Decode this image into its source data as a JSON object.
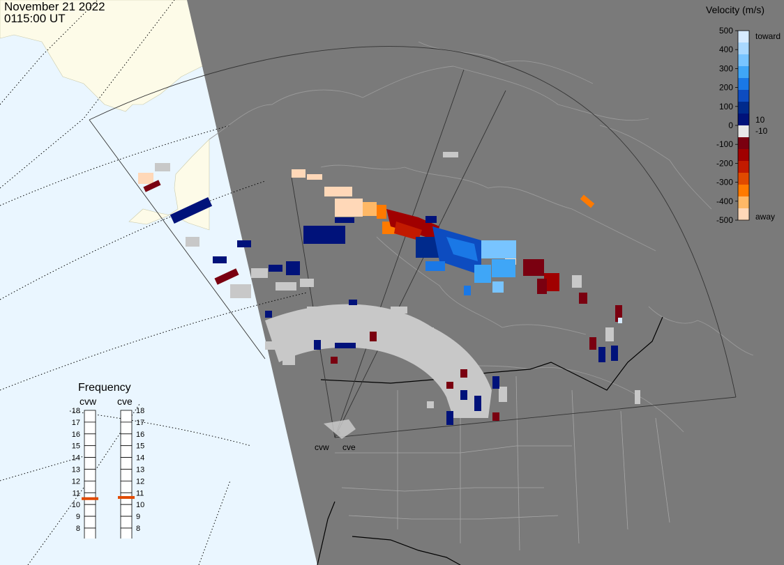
{
  "header": {
    "date": "November 21 2022",
    "time": "0115:00 UT"
  },
  "colorbar": {
    "title": "Velocity (m/s)",
    "ticks": [
      "500",
      "400",
      "300",
      "200",
      "100",
      "0",
      "-100",
      "-200",
      "-300",
      "-400",
      "-500"
    ],
    "label_toward": "toward",
    "label_away": "away",
    "label_pos": "10",
    "label_neg": "-10",
    "colors": [
      "#d6eaff",
      "#a9d8ff",
      "#78c4ff",
      "#3fa6f7",
      "#1a78e6",
      "#0d4cc0",
      "#002a8c",
      "#00127a",
      "#e8e8e8",
      "#7a0010",
      "#a00000",
      "#c21a00",
      "#e04a00",
      "#ff7a00",
      "#ffb866",
      "#ffd8b8"
    ]
  },
  "frequency": {
    "title": "Frequency",
    "radars": [
      "cvw",
      "cve"
    ],
    "scale": [
      "18",
      "17",
      "16",
      "15",
      "14",
      "13",
      "12",
      "11",
      "10",
      "9",
      "8"
    ],
    "cvw_mhz": 10.5,
    "cve_mhz": 10.6,
    "marker_color": "#e04a00"
  },
  "stations": [
    "cvw",
    "cve"
  ],
  "map_colors": {
    "ocean": "#eaf6ff",
    "land": "#fdfbe8",
    "night": "#7a7a7a",
    "scatter": "#c8c8c8"
  }
}
